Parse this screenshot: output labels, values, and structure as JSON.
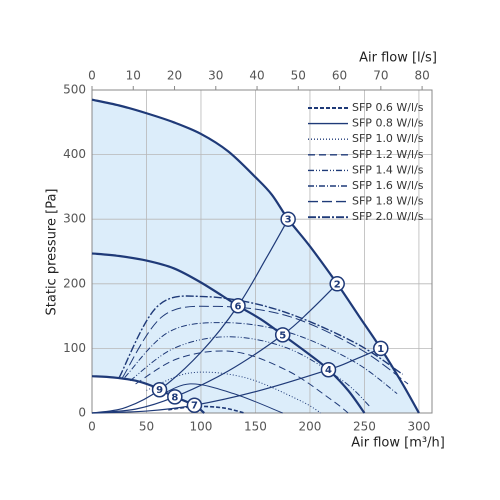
{
  "chart_data": {
    "type": "line",
    "y_label": "Static pressure [Pa]",
    "x_label": "Air flow [m³/h]",
    "x2_label": "Air flow [l/s]",
    "xlim": [
      0,
      312
    ],
    "xticks": [
      0,
      50,
      100,
      150,
      200,
      250,
      300
    ],
    "x2lim": [
      0,
      82.4
    ],
    "x2ticks": [
      0,
      10,
      20,
      30,
      40,
      50,
      60,
      70,
      80
    ],
    "ylim": [
      0,
      500
    ],
    "yticks": [
      0,
      100,
      200,
      300,
      400,
      500
    ],
    "grid": true,
    "legend": "upper right",
    "series": [
      {
        "color": "#1f3a78",
        "width": 2.2,
        "fill": "#dcedfa",
        "x": [
          0,
          25,
          50,
          75,
          100,
          125,
          150,
          165,
          180,
          200,
          225,
          245,
          265,
          285,
          300
        ],
        "values": [
          485,
          476,
          464,
          450,
          432,
          405,
          365,
          338,
          300,
          258,
          200,
          150,
          100,
          45,
          0
        ]
      },
      {
        "color": "#1f3a78",
        "width": 2.2,
        "x": [
          0,
          25,
          50,
          75,
          100,
          134,
          155,
          175,
          200,
          217,
          235,
          250
        ],
        "values": [
          247,
          243,
          236,
          224,
          202,
          166,
          145,
          121,
          90,
          67,
          35,
          0
        ]
      },
      {
        "color": "#1f3a78",
        "width": 2.2,
        "fill": "#ffffff",
        "x": [
          0,
          20,
          40,
          55,
          62,
          76,
          94,
          103
        ],
        "values": [
          57,
          55,
          50,
          42,
          36,
          25,
          12,
          0
        ]
      },
      {
        "color": "#1f3a78",
        "width": 1.2,
        "x": [
          0,
          30,
          62,
          100,
          134,
          160,
          180
        ],
        "values": [
          0,
          8,
          36,
          94,
          166,
          240,
          300
        ]
      },
      {
        "color": "#1f3a78",
        "width": 1.2,
        "x": [
          0,
          40,
          76,
          125,
          175,
          200,
          225
        ],
        "values": [
          0,
          6,
          25,
          65,
          121,
          158,
          200
        ]
      },
      {
        "color": "#1f3a78",
        "width": 1.2,
        "x": [
          0,
          50,
          94,
          150,
          217,
          240,
          265
        ],
        "values": [
          0,
          3,
          12,
          33,
          67,
          82,
          100
        ]
      },
      {
        "name": "SFP 0.6 W/l/s",
        "color": "#1f3a78",
        "width": 1.6,
        "dash": "4,2",
        "x": [
          70,
          95,
          120,
          140
        ],
        "values": [
          5,
          10,
          8,
          0
        ]
      },
      {
        "name": "SFP 0.8 W/l/s",
        "color": "#1f3a78",
        "width": 1,
        "dash": "none",
        "x": [
          60,
          90,
          130,
          175
        ],
        "values": [
          25,
          45,
          30,
          0
        ]
      },
      {
        "name": "SFP 1.0 W/l/s",
        "color": "#1f3a78",
        "width": 1,
        "dash": "1,2",
        "x": [
          50,
          90,
          140,
          190,
          210
        ],
        "values": [
          35,
          62,
          55,
          20,
          0
        ]
      },
      {
        "name": "SFP 1.2 W/l/s",
        "color": "#1f3a78",
        "width": 1,
        "dash": "7,4",
        "x": [
          40,
          80,
          130,
          180,
          220,
          235
        ],
        "values": [
          45,
          85,
          95,
          65,
          20,
          0
        ]
      },
      {
        "name": "SFP 1.4 W/l/s",
        "color": "#1f3a78",
        "width": 1,
        "dash": "6,2,1,2,1,2",
        "x": [
          35,
          75,
          125,
          180,
          230,
          255
        ],
        "values": [
          50,
          100,
          118,
          100,
          50,
          10
        ]
      },
      {
        "name": "SFP 1.6 W/l/s",
        "color": "#1f3a78",
        "width": 1,
        "dash": "6,2,1,2",
        "x": [
          30,
          70,
          120,
          180,
          240,
          280
        ],
        "values": [
          55,
          125,
          140,
          125,
          80,
          30
        ]
      },
      {
        "name": "SFP 1.8 W/l/s",
        "color": "#1f3a78",
        "width": 1,
        "dash": "10,4",
        "x": [
          28,
          65,
          115,
          180,
          245,
          290
        ],
        "values": [
          55,
          150,
          165,
          150,
          100,
          45
        ]
      },
      {
        "name": "SFP 2.0 W/l/s",
        "color": "#1f3a78",
        "width": 1.4,
        "dash": "8,2,2,2",
        "x": [
          25,
          60,
          105,
          170,
          240,
          285
        ],
        "values": [
          55,
          165,
          180,
          160,
          110,
          60
        ]
      }
    ],
    "points": {
      "color": "#1f3a78",
      "labels": [
        "1",
        "2",
        "3",
        "4",
        "5",
        "6",
        "7",
        "8",
        "9"
      ],
      "x": [
        265,
        225,
        180,
        217,
        175,
        134,
        94,
        76,
        62
      ],
      "y": [
        100,
        200,
        300,
        67,
        121,
        166,
        12,
        25,
        36
      ]
    }
  }
}
